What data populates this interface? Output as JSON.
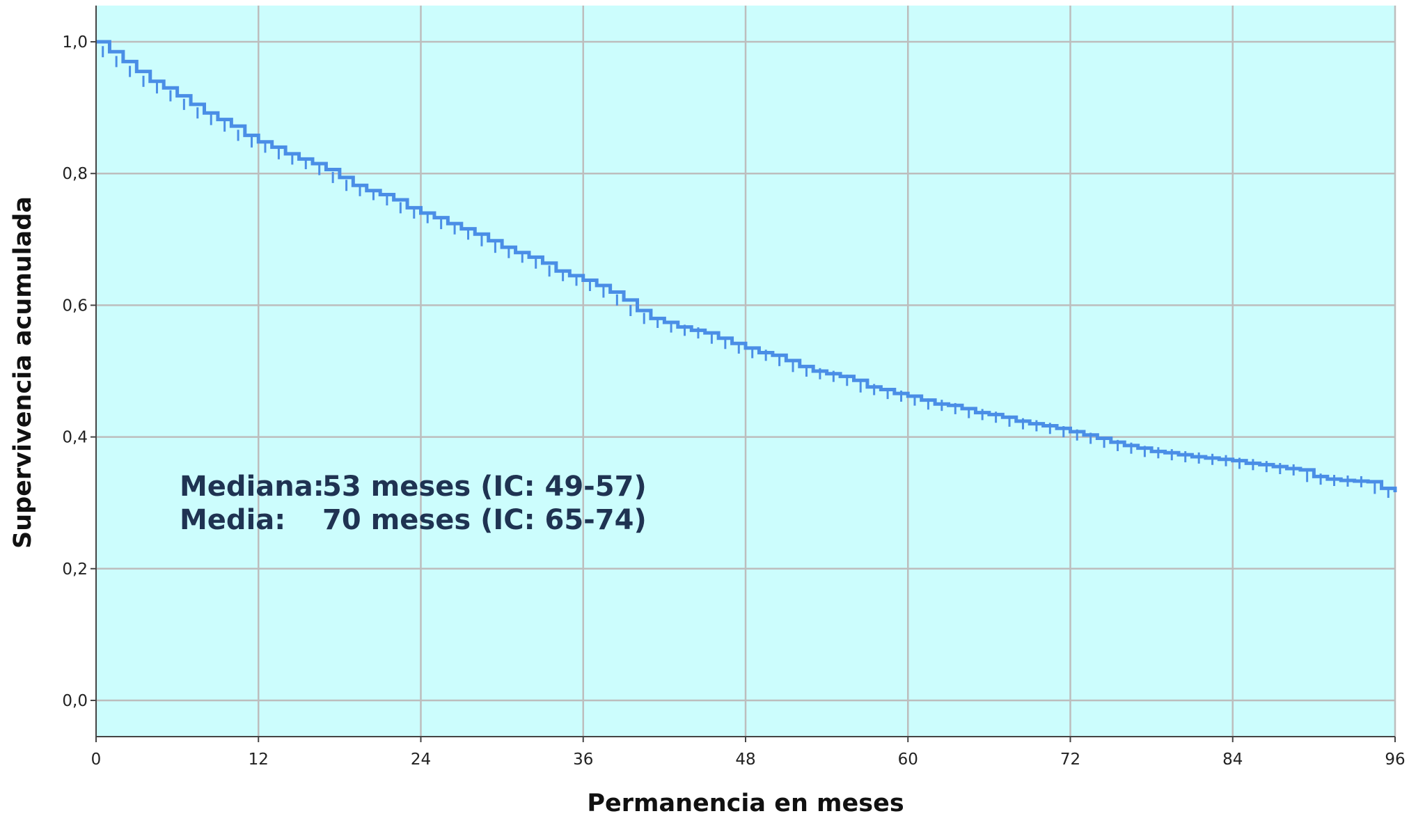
{
  "chart_data": {
    "type": "line",
    "subtype": "step (Kaplan-Meier survival curve with censor marks)",
    "title": "",
    "xlabel": "Permanencia en meses",
    "ylabel": "Supervivencia acumulada",
    "xlim": [
      0,
      96
    ],
    "ylim": [
      -0.055,
      1.055
    ],
    "xticks": [
      0,
      12,
      24,
      36,
      48,
      60,
      72,
      84,
      96
    ],
    "xtick_labels": [
      "0",
      "12",
      "24",
      "36",
      "48",
      "60",
      "72",
      "84",
      "96"
    ],
    "yticks": [
      0.0,
      0.2,
      0.4,
      0.6,
      0.8,
      1.0
    ],
    "ytick_labels": [
      "0,0",
      "0,2",
      "0,4",
      "0,6",
      "0,8",
      "1,0"
    ],
    "grid": true,
    "legend": "none",
    "colors": {
      "background": "#ccfdfd",
      "line": "#4a8ee6",
      "grid": "#bdbdbd",
      "annotation": "#1f3352"
    },
    "series": [
      {
        "points": [
          [
            0,
            1.0
          ],
          [
            1,
            0.985
          ],
          [
            2,
            0.97
          ],
          [
            3,
            0.955
          ],
          [
            4,
            0.94
          ],
          [
            5,
            0.93
          ],
          [
            6,
            0.918
          ],
          [
            7,
            0.905
          ],
          [
            8,
            0.892
          ],
          [
            9,
            0.882
          ],
          [
            10,
            0.872
          ],
          [
            11,
            0.858
          ],
          [
            12,
            0.848
          ],
          [
            13,
            0.84
          ],
          [
            14,
            0.83
          ],
          [
            15,
            0.822
          ],
          [
            16,
            0.815
          ],
          [
            17,
            0.806
          ],
          [
            18,
            0.794
          ],
          [
            19,
            0.782
          ],
          [
            20,
            0.774
          ],
          [
            21,
            0.768
          ],
          [
            22,
            0.76
          ],
          [
            23,
            0.748
          ],
          [
            24,
            0.74
          ],
          [
            25,
            0.733
          ],
          [
            26,
            0.724
          ],
          [
            27,
            0.716
          ],
          [
            28,
            0.708
          ],
          [
            29,
            0.698
          ],
          [
            30,
            0.688
          ],
          [
            31,
            0.68
          ],
          [
            32,
            0.673
          ],
          [
            33,
            0.664
          ],
          [
            34,
            0.652
          ],
          [
            35,
            0.645
          ],
          [
            36,
            0.638
          ],
          [
            37,
            0.63
          ],
          [
            38,
            0.62
          ],
          [
            39,
            0.608
          ],
          [
            40,
            0.592
          ],
          [
            41,
            0.58
          ],
          [
            42,
            0.574
          ],
          [
            43,
            0.567
          ],
          [
            44,
            0.562
          ],
          [
            45,
            0.558
          ],
          [
            46,
            0.55
          ],
          [
            47,
            0.542
          ],
          [
            48,
            0.535
          ],
          [
            49,
            0.528
          ],
          [
            50,
            0.524
          ],
          [
            51,
            0.516
          ],
          [
            52,
            0.507
          ],
          [
            53,
            0.5
          ],
          [
            54,
            0.496
          ],
          [
            55,
            0.492
          ],
          [
            56,
            0.486
          ],
          [
            57,
            0.476
          ],
          [
            58,
            0.472
          ],
          [
            59,
            0.466
          ],
          [
            60,
            0.462
          ],
          [
            61,
            0.456
          ],
          [
            62,
            0.45
          ],
          [
            63,
            0.448
          ],
          [
            64,
            0.443
          ],
          [
            65,
            0.437
          ],
          [
            66,
            0.434
          ],
          [
            67,
            0.43
          ],
          [
            68,
            0.424
          ],
          [
            69,
            0.42
          ],
          [
            70,
            0.417
          ],
          [
            71,
            0.413
          ],
          [
            72,
            0.408
          ],
          [
            73,
            0.403
          ],
          [
            74,
            0.398
          ],
          [
            75,
            0.392
          ],
          [
            76,
            0.387
          ],
          [
            77,
            0.383
          ],
          [
            78,
            0.378
          ],
          [
            79,
            0.376
          ],
          [
            80,
            0.373
          ],
          [
            81,
            0.37
          ],
          [
            82,
            0.368
          ],
          [
            83,
            0.366
          ],
          [
            84,
            0.364
          ],
          [
            85,
            0.36
          ],
          [
            86,
            0.358
          ],
          [
            87,
            0.355
          ],
          [
            88,
            0.352
          ],
          [
            89,
            0.35
          ],
          [
            90,
            0.34
          ],
          [
            91,
            0.336
          ],
          [
            92,
            0.334
          ],
          [
            93,
            0.333
          ],
          [
            94,
            0.332
          ],
          [
            95,
            0.322
          ],
          [
            96,
            0.316
          ]
        ]
      }
    ],
    "annotations": [
      {
        "label": "Mediana:",
        "value": "53 meses (IC: 49-57)"
      },
      {
        "label": "Media:",
        "value": "70 meses (IC: 65-74)"
      }
    ]
  }
}
